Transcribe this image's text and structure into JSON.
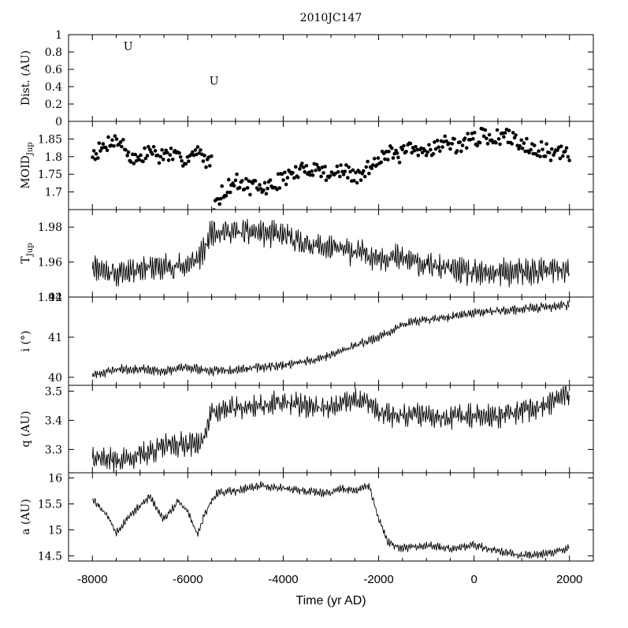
{
  "figure": {
    "title": "2010JC147",
    "x_axis_label": "Time (yr AD)"
  },
  "chart_data": [
    {
      "type": "scatter",
      "panel": "distance",
      "ylabel": "Dist. (AU)",
      "ylim": [
        0,
        1
      ],
      "yticks": [
        "0",
        "0.2",
        "0.4",
        "0.6",
        "0.8",
        "1"
      ],
      "marker": "U",
      "points": [
        {
          "x": -7250,
          "y": 0.87,
          "label": "U"
        },
        {
          "x": -5450,
          "y": 0.47,
          "label": "U"
        }
      ]
    },
    {
      "type": "scatter",
      "panel": "moid",
      "ylabel": "MOID",
      "ylabel_subscript": "Jup",
      "ylim": [
        1.65,
        1.9
      ],
      "yticks": [
        "1.7",
        "1.75",
        "1.8",
        "1.85"
      ],
      "segments": [
        {
          "x": [
            -8000,
            -7800,
            -7600,
            -7400,
            -7200,
            -7000,
            -6800,
            -6600,
            -6400,
            -6200,
            -6000,
            -5800,
            -5600,
            -5500
          ],
          "y": [
            1.81,
            1.82,
            1.85,
            1.84,
            1.8,
            1.79,
            1.82,
            1.8,
            1.81,
            1.79,
            1.8,
            1.81,
            1.79,
            1.78
          ]
        },
        {
          "x": [
            -5450,
            -5200,
            -5000,
            -4800,
            -4600,
            -4400,
            -4200,
            -4000,
            -3800,
            -3600,
            -3400,
            -3200,
            -3000,
            -2800,
            -2600,
            -2400,
            -2200,
            -2000,
            -1800,
            -1600,
            -1400,
            -1200,
            -1000,
            -800,
            -600,
            -400,
            -200,
            0,
            200,
            400,
            600,
            800,
            1000,
            1200,
            1400,
            1600,
            1800,
            2000
          ],
          "y": [
            1.67,
            1.71,
            1.73,
            1.72,
            1.71,
            1.71,
            1.72,
            1.74,
            1.75,
            1.76,
            1.77,
            1.76,
            1.75,
            1.76,
            1.75,
            1.74,
            1.77,
            1.8,
            1.81,
            1.8,
            1.82,
            1.81,
            1.82,
            1.83,
            1.84,
            1.83,
            1.84,
            1.85,
            1.86,
            1.85,
            1.86,
            1.85,
            1.84,
            1.83,
            1.82,
            1.81,
            1.81,
            1.8
          ]
        }
      ]
    },
    {
      "type": "line",
      "panel": "tisserand",
      "ylabel": "T",
      "ylabel_subscript": "Jup",
      "ylim": [
        1.94,
        1.99
      ],
      "yticks": [
        "1.94",
        "1.96",
        "1.98"
      ],
      "x": [
        -8000,
        -7500,
        -7000,
        -6500,
        -6000,
        -5700,
        -5500,
        -5000,
        -4500,
        -4000,
        -3500,
        -3000,
        -2500,
        -2000,
        -1500,
        -1000,
        -500,
        0,
        500,
        1000,
        1500,
        2000
      ],
      "y": [
        1.958,
        1.953,
        1.957,
        1.957,
        1.958,
        1.964,
        1.978,
        1.977,
        1.977,
        1.975,
        1.97,
        1.968,
        1.966,
        1.963,
        1.962,
        1.958,
        1.956,
        1.953,
        1.954,
        1.954,
        1.955,
        1.956
      ]
    },
    {
      "type": "line",
      "panel": "inclination",
      "ylabel": "i (°)",
      "ylim": [
        39.8,
        42
      ],
      "yticks": [
        "40",
        "41",
        "42"
      ],
      "x": [
        -8000,
        -7500,
        -7000,
        -6500,
        -6000,
        -5500,
        -5000,
        -4500,
        -4000,
        -3500,
        -3000,
        -2500,
        -2000,
        -1500,
        -1000,
        -500,
        0,
        500,
        1000,
        1500,
        2000
      ],
      "y": [
        40.05,
        40.2,
        40.2,
        40.15,
        40.25,
        40.15,
        40.2,
        40.25,
        40.3,
        40.4,
        40.55,
        40.8,
        41.0,
        41.3,
        41.45,
        41.5,
        41.6,
        41.65,
        41.7,
        41.75,
        41.8
      ]
    },
    {
      "type": "line",
      "panel": "perihelion",
      "ylabel": "q (AU)",
      "ylim": [
        3.22,
        3.52
      ],
      "yticks": [
        "3.3",
        "3.4",
        "3.5"
      ],
      "x": [
        -8000,
        -7500,
        -7000,
        -6500,
        -6000,
        -5700,
        -5500,
        -5000,
        -4500,
        -4000,
        -3500,
        -3000,
        -2500,
        -2200,
        -2000,
        -1500,
        -1000,
        -500,
        0,
        500,
        1000,
        1500,
        2000
      ],
      "y": [
        3.28,
        3.26,
        3.28,
        3.31,
        3.32,
        3.32,
        3.43,
        3.44,
        3.45,
        3.46,
        3.45,
        3.44,
        3.47,
        3.46,
        3.42,
        3.42,
        3.42,
        3.41,
        3.42,
        3.41,
        3.43,
        3.45,
        3.49
      ]
    },
    {
      "type": "line",
      "panel": "semimajor-axis",
      "ylabel": "a (AU)",
      "ylim": [
        14.4,
        16.1
      ],
      "yticks": [
        "14.5",
        "15",
        "15.5",
        "16"
      ],
      "x": [
        -8000,
        -7700,
        -7500,
        -7200,
        -7000,
        -6800,
        -6500,
        -6200,
        -6000,
        -5800,
        -5600,
        -5400,
        -5000,
        -4500,
        -4000,
        -3500,
        -3000,
        -2800,
        -2500,
        -2200,
        -2000,
        -1800,
        -1500,
        -1000,
        -500,
        0,
        500,
        1000,
        1500,
        1800,
        2000
      ],
      "y": [
        15.6,
        15.3,
        14.95,
        15.3,
        15.45,
        15.65,
        15.2,
        15.55,
        15.35,
        14.9,
        15.4,
        15.7,
        15.75,
        15.85,
        15.8,
        15.75,
        15.7,
        15.8,
        15.75,
        15.85,
        15.2,
        14.75,
        14.65,
        14.7,
        14.65,
        14.7,
        14.6,
        14.5,
        14.55,
        14.6,
        14.65
      ]
    }
  ],
  "x_axis": {
    "xlim": [
      -8500,
      2500
    ],
    "ticks": [
      "-8000",
      "-6000",
      "-4000",
      "-2000",
      "0",
      "2000"
    ],
    "tick_values": [
      -8000,
      -6000,
      -4000,
      -2000,
      0,
      2000
    ]
  }
}
